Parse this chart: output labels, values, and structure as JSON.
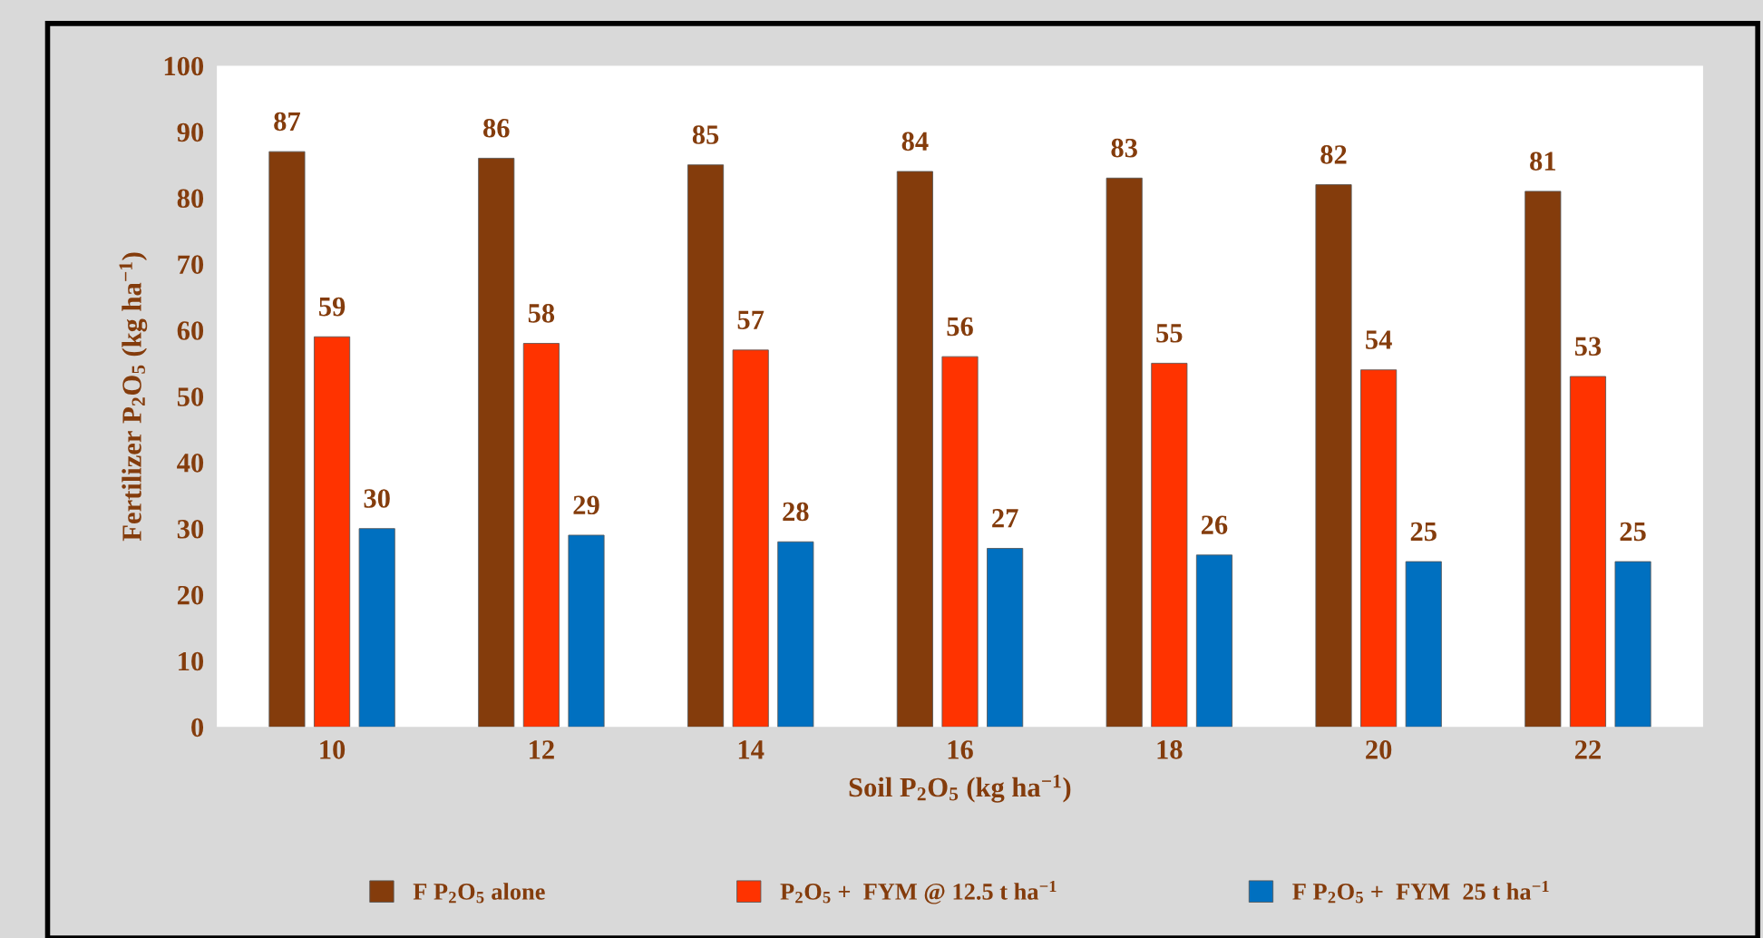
{
  "chart_data": {
    "type": "bar",
    "xlabel": "Soil P$_{2}$O$_{5}$ (kg ha$^{−1}$)",
    "ylabel": "Fertilizer P$_{2}$O$_{5}$ (kg ha$^{−1}$)",
    "categories": [
      "10",
      "12",
      "14",
      "16",
      "18",
      "20",
      "22"
    ],
    "series": [
      {
        "name": "F P$_{2}$O$_{5}$ alone",
        "color": "#843c0c",
        "values": [
          87,
          86,
          85,
          84,
          83,
          82,
          81
        ]
      },
      {
        "name": "P$_{2}$O$_{5}$ +  FYM @ 12.5 t ha$^{−1}$",
        "color": "#ff3300",
        "values": [
          59,
          58,
          57,
          56,
          55,
          54,
          53
        ]
      },
      {
        "name": "F P$_{2}$O$_{5}$ +  FYM  25 t ha$^{−1}$",
        "color": "#0070c0",
        "values": [
          30,
          29,
          28,
          27,
          26,
          25,
          25
        ]
      }
    ],
    "ylim": [
      0,
      100
    ],
    "yticks": [
      0,
      10,
      20,
      30,
      40,
      50,
      60,
      70,
      80,
      90,
      100
    ],
    "data_labels": true,
    "grid": false,
    "legend": "bottom"
  }
}
